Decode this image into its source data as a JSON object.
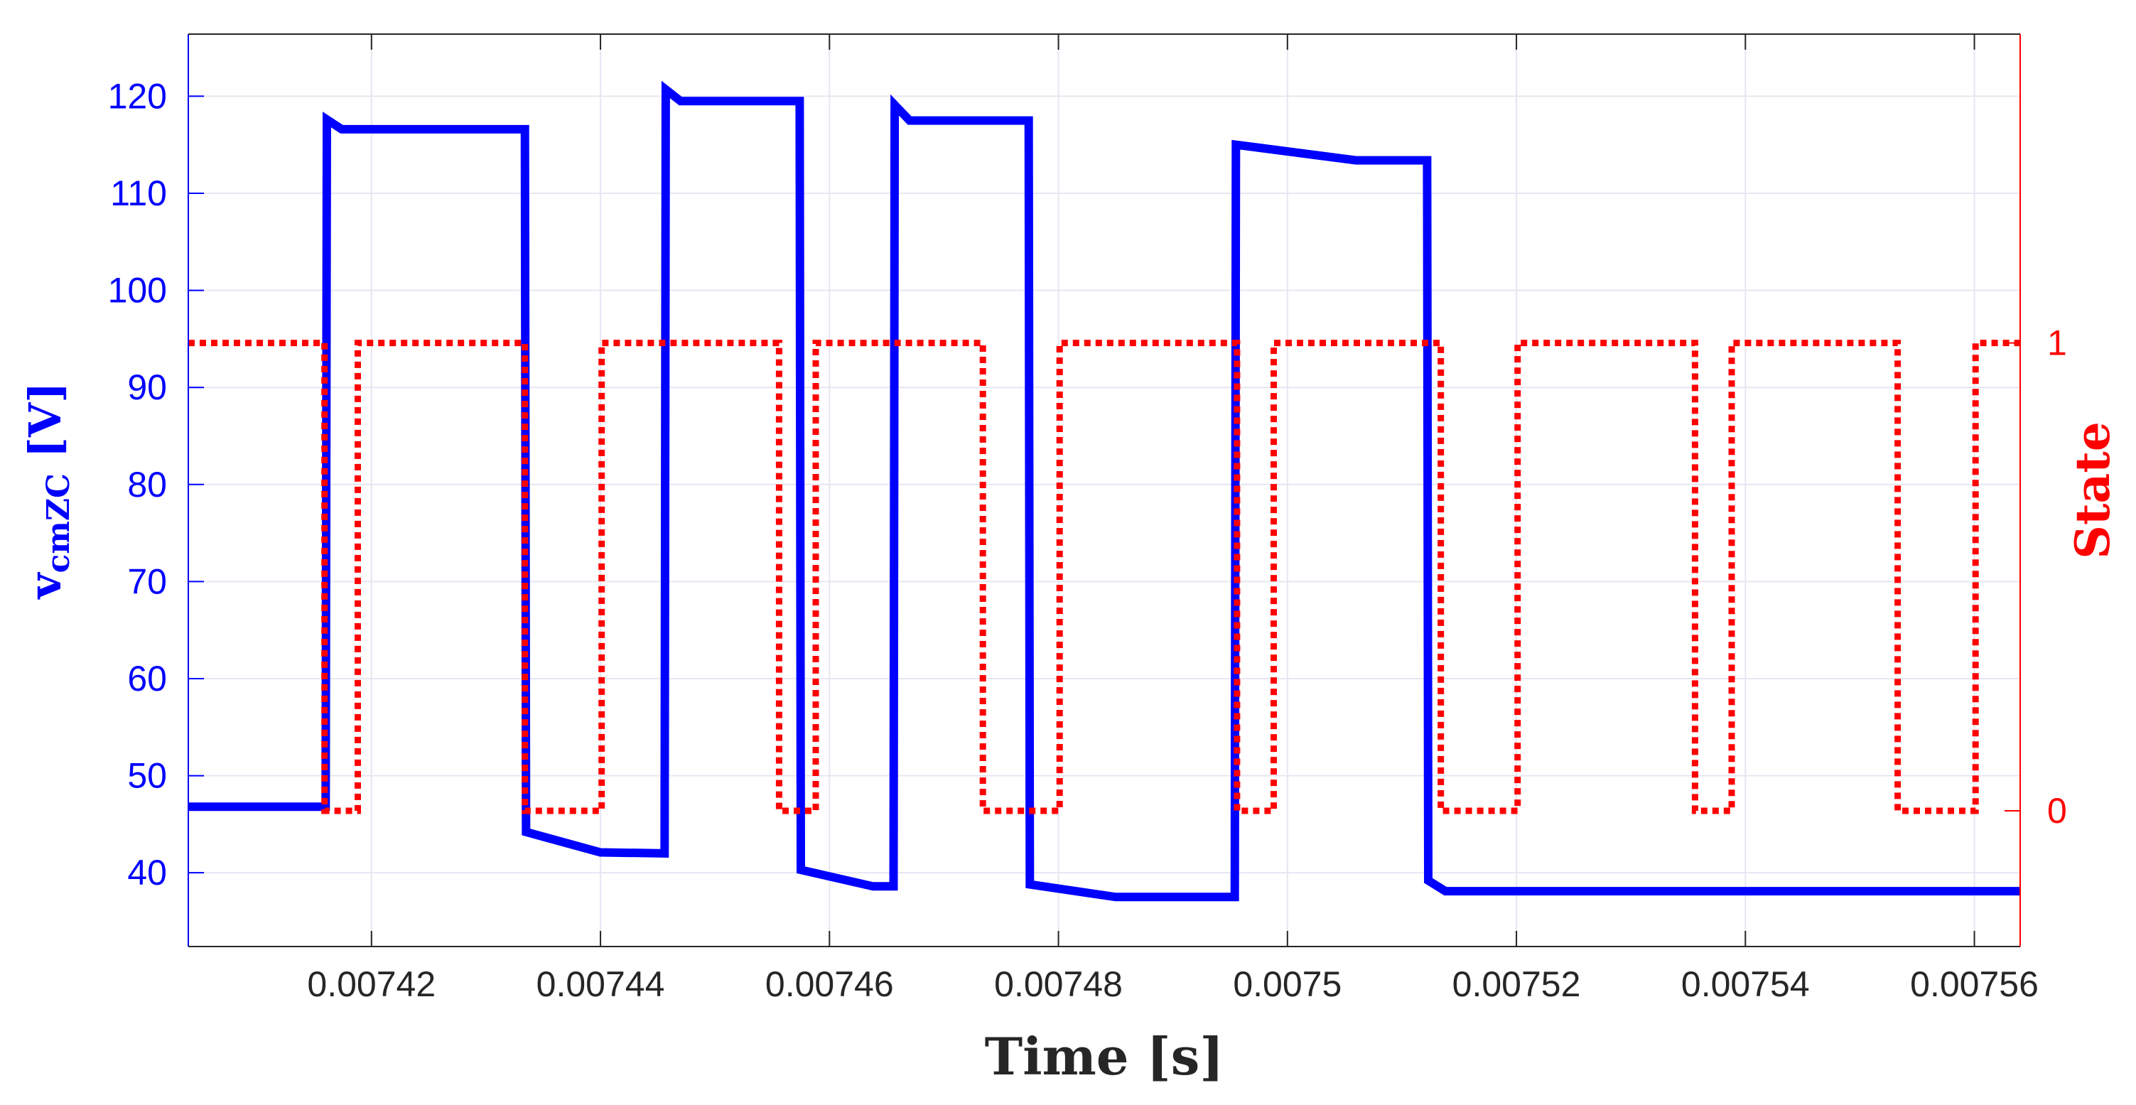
{
  "chart_data": {
    "type": "line",
    "grid": true,
    "x_axis": {
      "label": "Time [s]",
      "range": [
        0.007404,
        0.007564
      ],
      "ticks": [
        0.00742,
        0.00744,
        0.00746,
        0.00748,
        0.0075,
        0.00752,
        0.00754,
        0.00756
      ],
      "tick_labels": [
        "0.00742",
        "0.00744",
        "0.00746",
        "0.00748",
        "0.0075",
        "0.00752",
        "0.00754",
        "0.00756"
      ]
    },
    "y_left_axis": {
      "label_main": "v",
      "label_subscript": "cmZC",
      "label_unit": " [V]",
      "range": [
        32.4,
        126.4
      ],
      "ticks": [
        40,
        50,
        60,
        70,
        80,
        90,
        100,
        110,
        120
      ],
      "tick_labels": [
        "40",
        "50",
        "60",
        "70",
        "80",
        "90",
        "100",
        "110",
        "120"
      ],
      "color": "#0000ff"
    },
    "y_right_axis": {
      "label": "State",
      "range": [
        -0.29,
        1.66
      ],
      "ticks": [
        0,
        1
      ],
      "tick_labels": [
        "0",
        "1"
      ],
      "color": "#ff0000"
    },
    "series": [
      {
        "axis": "left",
        "color": "#0000ff",
        "style": "solid",
        "x": [
          0.007404,
          0.007416,
          0.0074161,
          0.0074174,
          0.0074334,
          0.0074335,
          0.00744,
          0.0074456,
          0.0074457,
          0.007447,
          0.0074574,
          0.0074575,
          0.0074638,
          0.0074656,
          0.0074657,
          0.007467,
          0.0074774,
          0.0074775,
          0.007485,
          0.0074852,
          0.0074954,
          0.0074955,
          0.007506,
          0.007508,
          0.0075122,
          0.0075123,
          0.0075138,
          0.0075248,
          0.0075249,
          0.007564
        ],
        "y": [
          46.8,
          46.8,
          117.6,
          116.6,
          116.6,
          44.2,
          42.1,
          42.0,
          120.7,
          119.5,
          119.5,
          40.3,
          38.6,
          38.6,
          119.1,
          117.5,
          117.5,
          38.8,
          37.5,
          37.5,
          37.5,
          115.0,
          113.4,
          113.4,
          113.4,
          39.2,
          38.1,
          38.1,
          38.1,
          38.1
        ]
      },
      {
        "axis": "right",
        "color": "#ff0000",
        "style": "dotted",
        "x": [
          0.007404,
          0.0074159,
          0.0074159,
          0.0074188,
          0.0074188,
          0.0074334,
          0.0074334,
          0.0074401,
          0.0074401,
          0.0074556,
          0.0074556,
          0.0074588,
          0.0074588,
          0.0074734,
          0.0074734,
          0.0074801,
          0.0074801,
          0.0074956,
          0.0074956,
          0.0074988,
          0.0074988,
          0.0075134,
          0.0075134,
          0.0075201,
          0.0075201,
          0.0075356,
          0.0075356,
          0.0075388,
          0.0075388,
          0.0075533,
          0.0075533,
          0.0075601,
          0.0075601,
          0.007564
        ],
        "y": [
          1,
          1,
          0,
          0,
          1,
          1,
          0,
          0,
          1,
          1,
          0,
          0,
          1,
          1,
          0,
          0,
          1,
          1,
          0,
          0,
          1,
          1,
          0,
          0,
          1,
          1,
          0,
          0,
          1,
          1,
          0,
          0,
          1,
          1
        ]
      }
    ]
  }
}
